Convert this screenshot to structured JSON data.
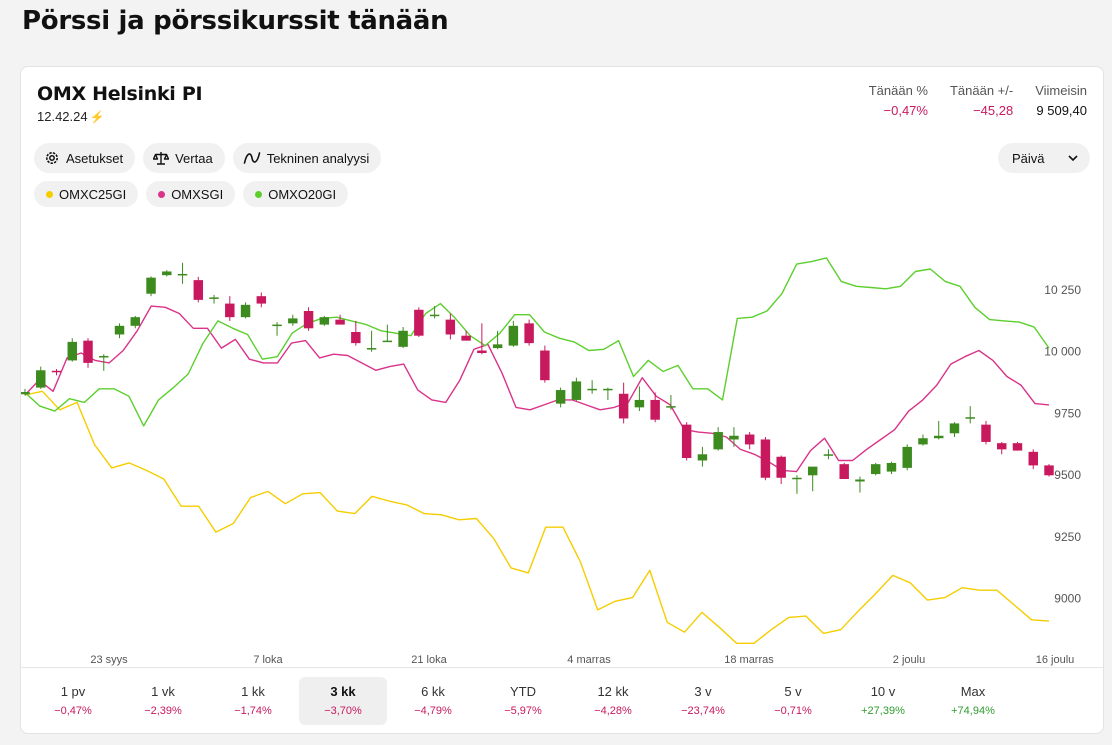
{
  "page_title": "Pörssi ja pörssikurssit tänään",
  "index": {
    "name": "OMX Helsinki PI",
    "time": "12.42.24"
  },
  "stats": [
    {
      "label": "Tänään %",
      "value": "−0,47%",
      "tone": "neg"
    },
    {
      "label": "Tänään +/-",
      "value": "−45,28",
      "tone": "neg"
    },
    {
      "label": "Viimeisin",
      "value": "9 509,40",
      "tone": "plain"
    }
  ],
  "toolbar": {
    "settings": "Asetukset",
    "compare": "Vertaa",
    "technical": "Tekninen analyysi",
    "interval": "Päivä"
  },
  "compare_legend": [
    {
      "name": "OMXC25GI",
      "color": "#f5cd00"
    },
    {
      "name": "OMXSGI",
      "color": "#d9338a"
    },
    {
      "name": "OMXO20GI",
      "color": "#5ccf2e"
    }
  ],
  "periods": [
    {
      "label": "1 pv",
      "change": "−0,47%",
      "tone": "neg"
    },
    {
      "label": "1 vk",
      "change": "−2,39%",
      "tone": "neg"
    },
    {
      "label": "1 kk",
      "change": "−1,74%",
      "tone": "neg"
    },
    {
      "label": "3 kk",
      "change": "−3,70%",
      "tone": "neg",
      "active": true
    },
    {
      "label": "6 kk",
      "change": "−4,79%",
      "tone": "neg"
    },
    {
      "label": "YTD",
      "change": "−5,97%",
      "tone": "neg"
    },
    {
      "label": "12 kk",
      "change": "−4,28%",
      "tone": "neg"
    },
    {
      "label": "3 v",
      "change": "−23,74%",
      "tone": "neg"
    },
    {
      "label": "5 v",
      "change": "−0,71%",
      "tone": "neg"
    },
    {
      "label": "10 v",
      "change": "+27,39%",
      "tone": "pos"
    },
    {
      "label": "Max",
      "change": "+74,94%",
      "tone": "pos"
    }
  ],
  "chart_data": {
    "type": "line",
    "ylim": [
      8800,
      10500
    ],
    "y_ticks": [
      "10 250",
      "10 000",
      "9750",
      "9500",
      "9250",
      "9000"
    ],
    "y_tick_values": [
      10250,
      10000,
      9750,
      9500,
      9250,
      9000
    ],
    "x_ticks": [
      "23 syys",
      "7 loka",
      "21 loka",
      "4 marras",
      "18 marras",
      "2 joulu",
      "16 joulu"
    ],
    "colors": {
      "up": "#3d8a1f",
      "down": "#c8195f"
    },
    "candles": [
      {
        "o": 9823,
        "h": 9845,
        "l": 9818,
        "c": 9832
      },
      {
        "o": 9850,
        "h": 9935,
        "l": 9845,
        "c": 9920
      },
      {
        "o": 9918,
        "h": 9925,
        "l": 9900,
        "c": 9912
      },
      {
        "o": 9960,
        "h": 10050,
        "l": 9955,
        "c": 10035
      },
      {
        "o": 10040,
        "h": 10050,
        "l": 9930,
        "c": 9950
      },
      {
        "o": 9978,
        "h": 9985,
        "l": 9918,
        "c": 9978
      },
      {
        "o": 10065,
        "h": 10110,
        "l": 10050,
        "c": 10100
      },
      {
        "o": 10100,
        "h": 10140,
        "l": 10090,
        "c": 10135
      },
      {
        "o": 10230,
        "h": 10300,
        "l": 10220,
        "c": 10295
      },
      {
        "o": 10305,
        "h": 10325,
        "l": 10300,
        "c": 10320
      },
      {
        "o": 10310,
        "h": 10355,
        "l": 10270,
        "c": 10310
      },
      {
        "o": 10285,
        "h": 10298,
        "l": 10195,
        "c": 10205
      },
      {
        "o": 10215,
        "h": 10225,
        "l": 10190,
        "c": 10215
      },
      {
        "o": 10190,
        "h": 10220,
        "l": 10120,
        "c": 10135
      },
      {
        "o": 10135,
        "h": 10195,
        "l": 10130,
        "c": 10185
      },
      {
        "o": 10220,
        "h": 10235,
        "l": 10175,
        "c": 10190
      },
      {
        "o": 10105,
        "h": 10115,
        "l": 10060,
        "c": 10105
      },
      {
        "o": 10110,
        "h": 10145,
        "l": 10100,
        "c": 10130
      },
      {
        "o": 10160,
        "h": 10175,
        "l": 10080,
        "c": 10090
      },
      {
        "o": 10105,
        "h": 10140,
        "l": 10100,
        "c": 10135
      },
      {
        "o": 10125,
        "h": 10145,
        "l": 10105,
        "c": 10105
      },
      {
        "o": 10075,
        "h": 10120,
        "l": 10020,
        "c": 10030
      },
      {
        "o": 10010,
        "h": 10080,
        "l": 9995,
        "c": 10010
      },
      {
        "o": 10040,
        "h": 10105,
        "l": 10035,
        "c": 10040
      },
      {
        "o": 10015,
        "h": 10095,
        "l": 10010,
        "c": 10080
      },
      {
        "o": 10165,
        "h": 10175,
        "l": 10055,
        "c": 10060
      },
      {
        "o": 10145,
        "h": 10180,
        "l": 10130,
        "c": 10145
      },
      {
        "o": 10125,
        "h": 10150,
        "l": 10045,
        "c": 10065
      },
      {
        "o": 10060,
        "h": 10080,
        "l": 10040,
        "c": 10040
      },
      {
        "o": 10000,
        "h": 10110,
        "l": 9985,
        "c": 9990
      },
      {
        "o": 10010,
        "h": 10080,
        "l": 10005,
        "c": 10025
      },
      {
        "o": 10020,
        "h": 10120,
        "l": 10015,
        "c": 10100
      },
      {
        "o": 10110,
        "h": 10125,
        "l": 10020,
        "c": 10030
      },
      {
        "o": 10000,
        "h": 10020,
        "l": 9870,
        "c": 9880
      },
      {
        "o": 9785,
        "h": 9850,
        "l": 9770,
        "c": 9840
      },
      {
        "o": 9800,
        "h": 9890,
        "l": 9795,
        "c": 9875
      },
      {
        "o": 9845,
        "h": 9880,
        "l": 9825,
        "c": 9845
      },
      {
        "o": 9845,
        "h": 9850,
        "l": 9800,
        "c": 9845
      },
      {
        "o": 9825,
        "h": 9870,
        "l": 9705,
        "c": 9725
      },
      {
        "o": 9770,
        "h": 9855,
        "l": 9755,
        "c": 9800
      },
      {
        "o": 9800,
        "h": 9830,
        "l": 9710,
        "c": 9720
      },
      {
        "o": 9775,
        "h": 9820,
        "l": 9760,
        "c": 9775
      },
      {
        "o": 9700,
        "h": 9710,
        "l": 9555,
        "c": 9565
      },
      {
        "o": 9555,
        "h": 9610,
        "l": 9530,
        "c": 9580
      },
      {
        "o": 9600,
        "h": 9690,
        "l": 9595,
        "c": 9670
      },
      {
        "o": 9640,
        "h": 9690,
        "l": 9610,
        "c": 9655
      },
      {
        "o": 9660,
        "h": 9670,
        "l": 9600,
        "c": 9620
      },
      {
        "o": 9640,
        "h": 9650,
        "l": 9475,
        "c": 9485
      },
      {
        "o": 9570,
        "h": 9575,
        "l": 9460,
        "c": 9485
      },
      {
        "o": 9485,
        "h": 9495,
        "l": 9420,
        "c": 9485
      },
      {
        "o": 9495,
        "h": 9530,
        "l": 9430,
        "c": 9530
      },
      {
        "o": 9580,
        "h": 9600,
        "l": 9560,
        "c": 9580
      },
      {
        "o": 9540,
        "h": 9545,
        "l": 9480,
        "c": 9480
      },
      {
        "o": 9470,
        "h": 9490,
        "l": 9425,
        "c": 9478
      },
      {
        "o": 9500,
        "h": 9545,
        "l": 9495,
        "c": 9540
      },
      {
        "o": 9510,
        "h": 9550,
        "l": 9500,
        "c": 9545
      },
      {
        "o": 9525,
        "h": 9620,
        "l": 9515,
        "c": 9610
      },
      {
        "o": 9620,
        "h": 9660,
        "l": 9615,
        "c": 9645
      },
      {
        "o": 9645,
        "h": 9715,
        "l": 9640,
        "c": 9655
      },
      {
        "o": 9665,
        "h": 9710,
        "l": 9650,
        "c": 9705
      },
      {
        "o": 9725,
        "h": 9775,
        "l": 9705,
        "c": 9730
      },
      {
        "o": 9700,
        "h": 9715,
        "l": 9620,
        "c": 9630
      },
      {
        "o": 9625,
        "h": 9630,
        "l": 9580,
        "c": 9600
      },
      {
        "o": 9625,
        "h": 9630,
        "l": 9595,
        "c": 9595
      },
      {
        "o": 9590,
        "h": 9600,
        "l": 9520,
        "c": 9535
      },
      {
        "o": 9535,
        "h": 9540,
        "l": 9490,
        "c": 9495
      }
    ],
    "series": [
      {
        "name": "OMXC25GI",
        "color": "#f5cd00",
        "values": [
          9820,
          9835,
          9760,
          9790,
          9620,
          9525,
          9545,
          9515,
          9480,
          9370,
          9370,
          9265,
          9300,
          9405,
          9430,
          9380,
          9420,
          9425,
          9350,
          9340,
          9410,
          9390,
          9375,
          9340,
          9335,
          9315,
          9320,
          9240,
          9120,
          9100,
          9285,
          9285,
          9145,
          8950,
          8985,
          9000,
          9110,
          8900,
          8860,
          8940,
          8880,
          8815,
          8815,
          8870,
          8920,
          8925,
          8855,
          8870,
          8945,
          9015,
          9090,
          9060,
          8990,
          9000,
          9040,
          9030,
          9030,
          8970,
          8910,
          8905
        ]
      },
      {
        "name": "OMXSGI",
        "color": "#d9338a",
        "values": [
          9820,
          9880,
          9835,
          9970,
          9990,
          9960,
          9950,
          10000,
          10080,
          10180,
          10175,
          10150,
          10090,
          10090,
          10010,
          10045,
          9965,
          9950,
          9950,
          10030,
          10040,
          9970,
          9985,
          9980,
          9950,
          9920,
          9935,
          9945,
          9840,
          9800,
          9790,
          9880,
          10005,
          10025,
          9910,
          9770,
          9760,
          9780,
          9800,
          9800,
          9780,
          9760,
          9770,
          9790,
          9890,
          9815,
          9780,
          9680,
          9670,
          9665,
          9650,
          9600,
          9580,
          9550,
          9515,
          9510,
          9595,
          9645,
          9555,
          9555,
          9600,
          9640,
          9680,
          9755,
          9800,
          9860,
          9945,
          9975,
          10000,
          9960,
          9895,
          9860,
          9785,
          9780
        ]
      },
      {
        "name": "OMXO20GI",
        "color": "#5ccf2e",
        "values": [
          9830,
          9775,
          9755,
          9805,
          9790,
          9845,
          9845,
          9815,
          9695,
          9800,
          9850,
          9905,
          10030,
          10120,
          10090,
          10065,
          9965,
          9975,
          10070,
          10110,
          10130,
          10135,
          10120,
          10105,
          10080,
          10070,
          10060,
          10150,
          10190,
          10130,
          10060,
          10020,
          10070,
          10145,
          10145,
          10075,
          10050,
          10035,
          10000,
          10005,
          10040,
          9895,
          9960,
          9915,
          9940,
          9845,
          9845,
          9800,
          10130,
          10135,
          10160,
          10230,
          10350,
          10360,
          10375,
          10280,
          10260,
          10255,
          10250,
          10260,
          10320,
          10330,
          10280,
          10260,
          10175,
          10125,
          10120,
          10115,
          10095,
          10010
        ]
      }
    ]
  }
}
